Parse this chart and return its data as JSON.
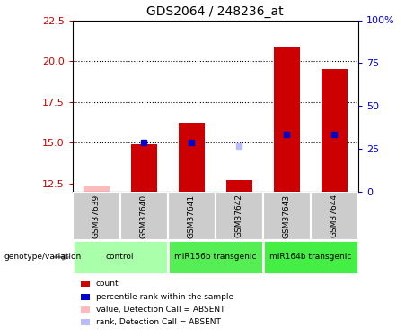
{
  "title": "GDS2064 / 248236_at",
  "samples": [
    "GSM37639",
    "GSM37640",
    "GSM37641",
    "GSM37642",
    "GSM37643",
    "GSM37644"
  ],
  "groups": [
    {
      "label": "control",
      "indices": [
        0,
        1
      ],
      "color": "#aaffaa"
    },
    {
      "label": "miR156b transgenic",
      "indices": [
        2,
        3
      ],
      "color": "#55ee55"
    },
    {
      "label": "miR164b transgenic",
      "indices": [
        4,
        5
      ],
      "color": "#44ee44"
    }
  ],
  "red_values": [
    12.3,
    14.9,
    16.2,
    12.7,
    20.9,
    19.5
  ],
  "blue_values": [
    null,
    15.0,
    15.0,
    14.8,
    15.5,
    15.5
  ],
  "red_absent": [
    true,
    false,
    false,
    false,
    false,
    false
  ],
  "blue_absent": [
    false,
    false,
    false,
    true,
    false,
    false
  ],
  "ylim_left": [
    12.0,
    22.5
  ],
  "ylim_right": [
    0,
    100
  ],
  "yticks_left": [
    12.5,
    15.0,
    17.5,
    20.0,
    22.5
  ],
  "yticks_right": [
    0,
    25,
    50,
    75,
    100
  ],
  "ytick_labels_right": [
    "0",
    "25",
    "50",
    "75",
    "100%"
  ],
  "hlines": [
    15.0,
    17.5,
    20.0
  ],
  "bar_width": 0.55,
  "legend_items": [
    {
      "label": "count",
      "color": "#cc0000"
    },
    {
      "label": "percentile rank within the sample",
      "color": "#0000cc"
    },
    {
      "label": "value, Detection Call = ABSENT",
      "color": "#ffbbbb"
    },
    {
      "label": "rank, Detection Call = ABSENT",
      "color": "#bbbbff"
    }
  ],
  "left_color": "#cc0000",
  "right_color": "#0000cc",
  "absent_red_color": "#ffbbbb",
  "absent_blue_color": "#bbbbff",
  "group_label_header": "genotype/variation"
}
